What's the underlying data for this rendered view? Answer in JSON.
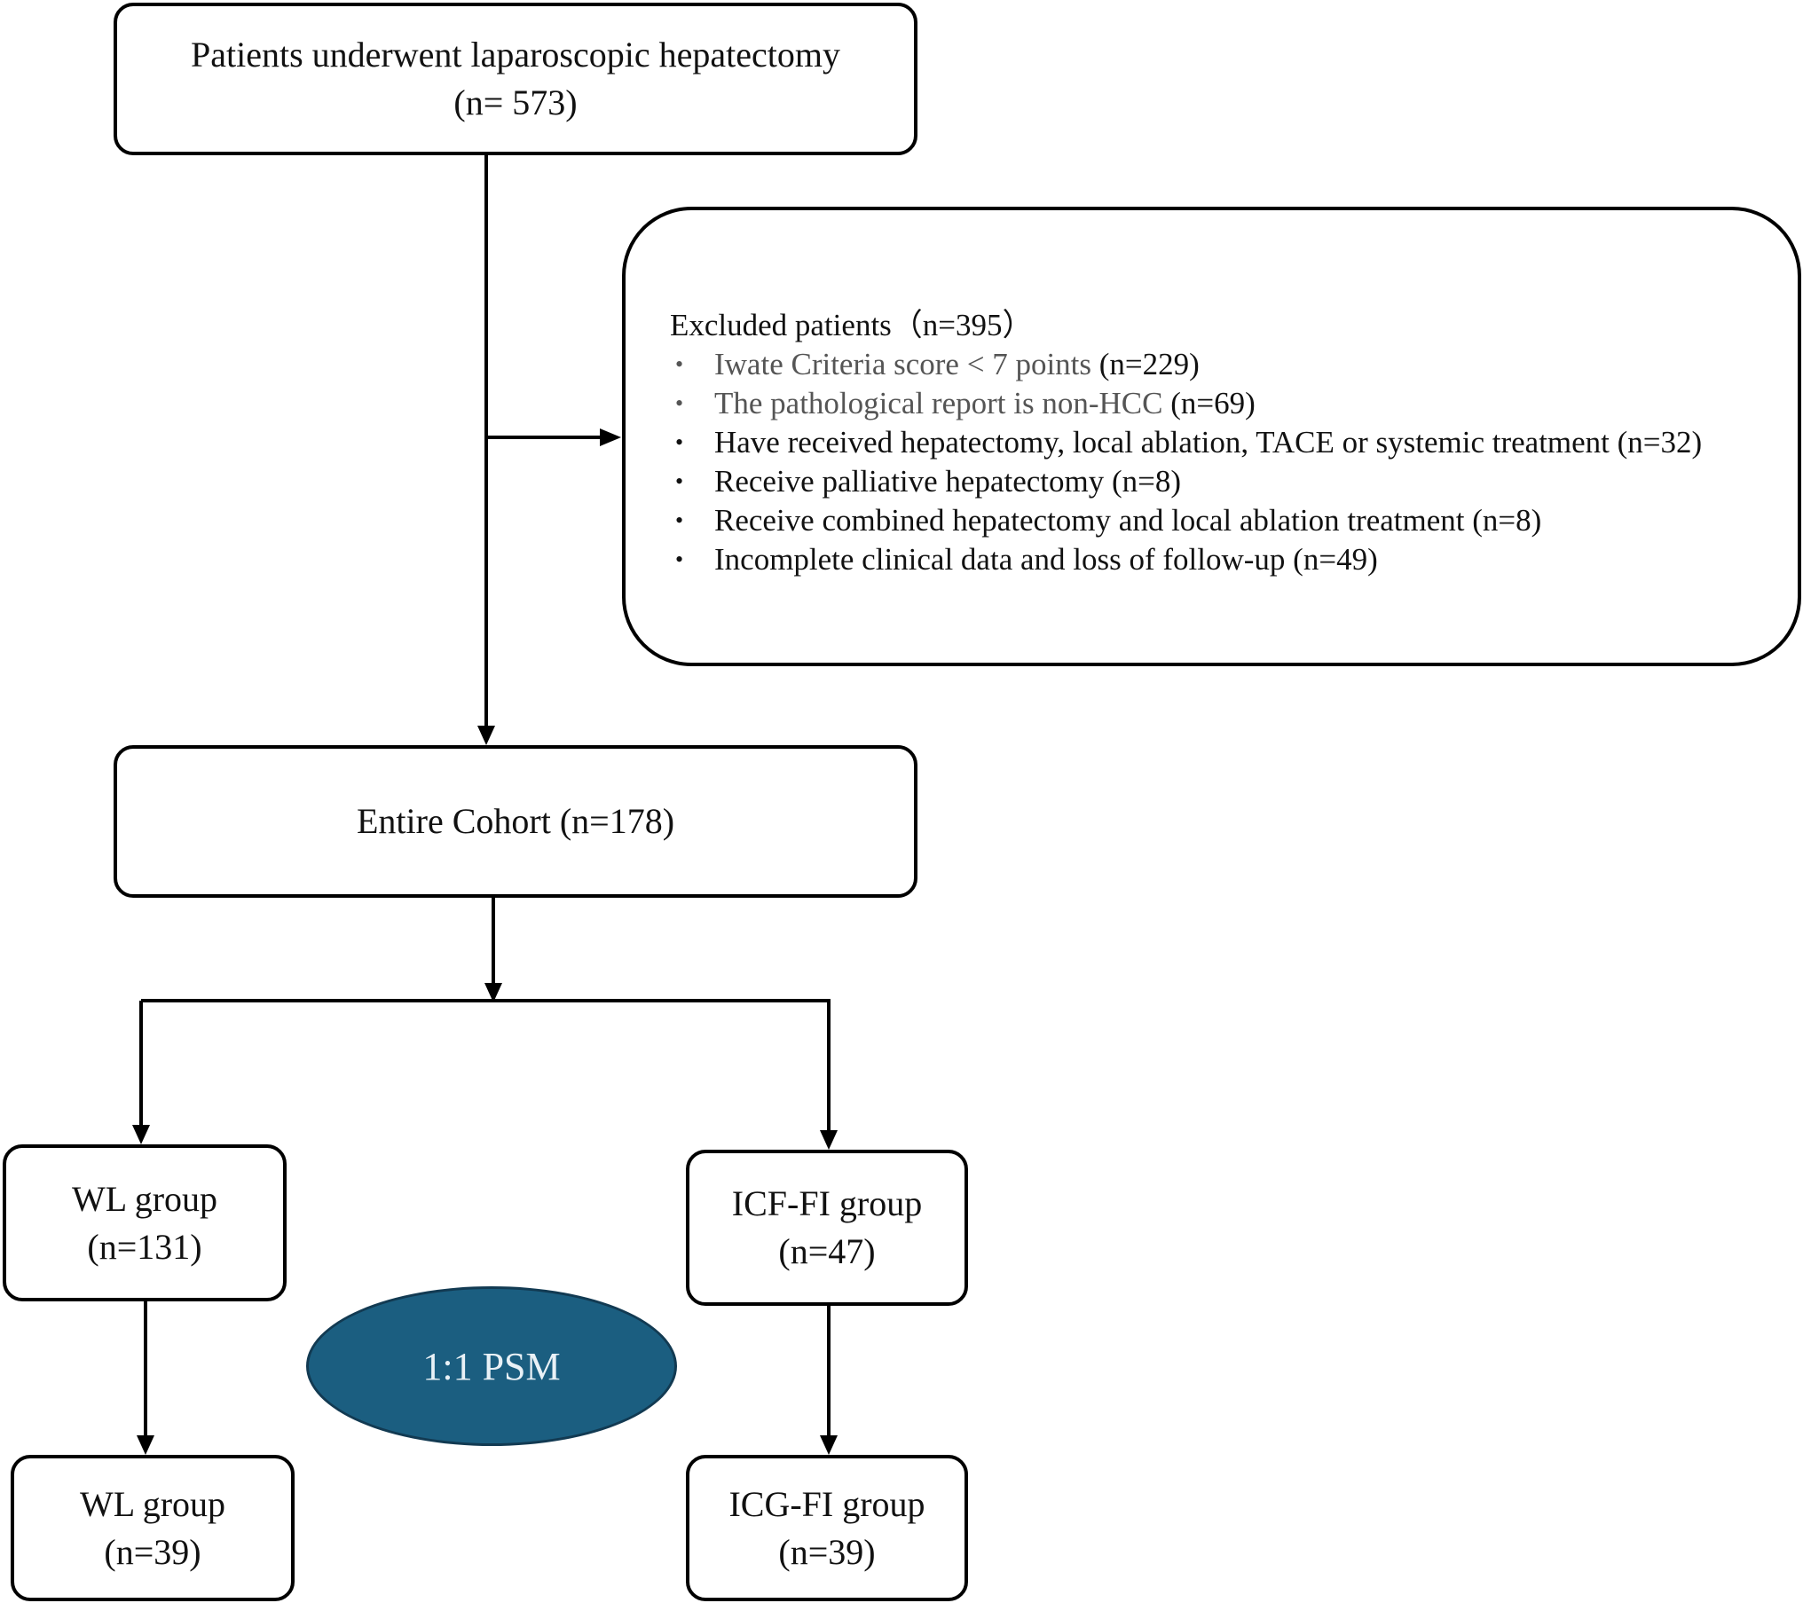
{
  "top_box": {
    "line1": "Patients underwent laparoscopic hepatectomy",
    "line2": "(n= 573)"
  },
  "excluded": {
    "title": "Excluded patients（n=395）",
    "items": [
      {
        "text": "Iwate Criteria score < 7 points",
        "count": " (n=229)"
      },
      {
        "text": "The pathological report is non-HCC",
        "count": " (n=69)"
      },
      {
        "text": "Have received hepatectomy, local ablation, TACE or systemic treatment",
        "count": " (n=32)"
      },
      {
        "text": "Receive palliative hepatectomy",
        "count": " (n=8)"
      },
      {
        "text": "Receive combined hepatectomy and local ablation treatment",
        "count": " (n=8)"
      },
      {
        "text": "Incomplete clinical data and loss of follow-up",
        "count": " (n=49)"
      }
    ]
  },
  "cohort_box": {
    "label": "Entire Cohort (n=178)"
  },
  "wl_group": {
    "name": "WL group",
    "n": "(n=131)"
  },
  "icf_group": {
    "name": "ICF-FI group",
    "n": "(n=47)"
  },
  "psm": {
    "label": "1:1 PSM"
  },
  "wl_matched": {
    "name": "WL group",
    "n": "(n=39)"
  },
  "icg_matched": {
    "name": "ICG-FI group",
    "n": "(n=39)"
  }
}
